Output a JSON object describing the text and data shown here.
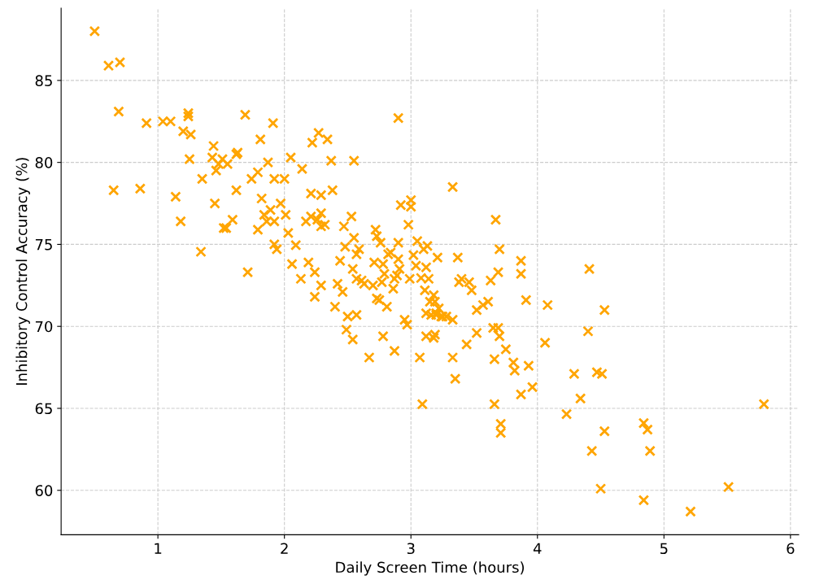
{
  "chart_data": {
    "type": "scatter",
    "xlabel": "Daily Screen Time (hours)",
    "ylabel": "Inhibitory Control Accuracy (%)",
    "xlim": [
      0.235,
      6.065
    ],
    "ylim": [
      57.29,
      89.41
    ],
    "xticks": [
      1,
      2,
      3,
      4,
      5,
      6
    ],
    "yticks": [
      60,
      65,
      70,
      75,
      80,
      85
    ],
    "grid": true,
    "marker": "cross",
    "series": [
      {
        "color": "#ffa500",
        "x": [
          0.5,
          0.61,
          0.7,
          0.69,
          0.65,
          0.86,
          0.91,
          1.04,
          1.1,
          1.2,
          1.24,
          1.24,
          1.26,
          1.25,
          1.14,
          1.18,
          1.34,
          1.35,
          1.44,
          1.43,
          1.46,
          1.48,
          1.51,
          1.55,
          1.45,
          1.52,
          1.54,
          1.59,
          1.62,
          1.63,
          1.62,
          1.69,
          1.71,
          1.74,
          1.79,
          1.81,
          1.91,
          1.79,
          1.82,
          1.84,
          1.86,
          1.87,
          1.89,
          1.92,
          1.92,
          1.92,
          1.94,
          1.97,
          2.0,
          2.01,
          2.03,
          2.05,
          2.06,
          2.09,
          2.13,
          2.14,
          2.17,
          2.19,
          2.21,
          2.21,
          2.22,
          2.24,
          2.24,
          2.26,
          2.27,
          2.29,
          2.29,
          2.29,
          2.29,
          2.32,
          2.34,
          2.37,
          2.38,
          2.4,
          2.42,
          2.44,
          2.46,
          2.47,
          2.48,
          2.49,
          2.5,
          2.54,
          2.55,
          2.53,
          2.54,
          2.55,
          2.57,
          2.57,
          2.57,
          2.59,
          2.61,
          2.63,
          2.67,
          2.7,
          2.71,
          2.72,
          2.73,
          2.73,
          2.75,
          2.76,
          2.77,
          2.78,
          2.78,
          2.79,
          2.81,
          2.82,
          2.84,
          2.86,
          2.87,
          2.87,
          2.89,
          2.9,
          2.9,
          2.9,
          2.92,
          2.91,
          2.95,
          2.97,
          2.98,
          2.99,
          3.0,
          3.0,
          3.02,
          3.05,
          3.04,
          3.07,
          3.09,
          3.08,
          3.1,
          3.11,
          3.12,
          3.12,
          3.13,
          3.14,
          3.12,
          3.15,
          3.16,
          3.18,
          3.18,
          3.19,
          3.2,
          3.21,
          3.2,
          3.19,
          3.22,
          3.24,
          3.25,
          3.28,
          3.33,
          3.33,
          3.33,
          3.35,
          3.37,
          3.38,
          3.4,
          3.44,
          3.46,
          3.48,
          3.52,
          3.52,
          3.57,
          3.61,
          3.63,
          3.65,
          3.66,
          3.66,
          3.67,
          3.7,
          3.87,
          3.69,
          3.87,
          3.91,
          4.08,
          4.53,
          4.41,
          4.4,
          4.06,
          3.69,
          3.7,
          3.75,
          3.81,
          3.82,
          3.93,
          3.96,
          3.87,
          4.29,
          4.47,
          4.51,
          4.34,
          4.23,
          5.79,
          3.71,
          3.71,
          4.53,
          4.84,
          4.87,
          4.43,
          4.89,
          4.5,
          5.51,
          4.84,
          5.21
        ],
        "values": [
          88.0,
          85.9,
          86.1,
          83.1,
          78.3,
          78.4,
          82.4,
          82.5,
          82.5,
          81.9,
          83.0,
          82.8,
          81.7,
          80.2,
          77.9,
          76.4,
          74.55,
          79.0,
          81.0,
          80.3,
          79.5,
          79.9,
          80.2,
          79.9,
          77.5,
          76.0,
          76.0,
          76.5,
          80.5,
          80.6,
          78.3,
          82.9,
          73.3,
          79.0,
          79.4,
          81.4,
          82.4,
          75.9,
          77.8,
          76.8,
          76.4,
          80.0,
          77.1,
          79.0,
          76.4,
          75.0,
          74.7,
          77.5,
          79.0,
          76.8,
          75.7,
          80.3,
          73.8,
          74.95,
          72.9,
          79.6,
          76.4,
          73.9,
          78.1,
          76.7,
          81.2,
          73.3,
          71.8,
          76.5,
          81.8,
          78.0,
          76.9,
          76.1,
          72.5,
          76.2,
          81.4,
          80.1,
          78.3,
          71.2,
          72.6,
          74.0,
          72.1,
          76.1,
          74.85,
          69.8,
          70.6,
          69.2,
          80.1,
          76.7,
          73.5,
          75.4,
          70.7,
          74.4,
          72.9,
          74.7,
          72.8,
          72.6,
          68.1,
          72.5,
          73.9,
          75.9,
          75.5,
          71.7,
          71.6,
          75.1,
          72.7,
          73.8,
          69.4,
          73.2,
          71.2,
          74.4,
          74.5,
          72.3,
          72.9,
          68.5,
          73.1,
          82.7,
          74.1,
          75.1,
          77.4,
          73.5,
          70.4,
          70.1,
          76.2,
          72.9,
          77.3,
          77.7,
          74.35,
          75.2,
          73.7,
          68.1,
          65.25,
          72.95,
          74.7,
          72.2,
          73.6,
          70.8,
          74.9,
          72.9,
          69.4,
          71.5,
          70.7,
          71.9,
          69.3,
          71.5,
          70.7,
          74.2,
          70.8,
          69.5,
          71.1,
          70.6,
          70.6,
          70.6,
          70.4,
          78.5,
          68.1,
          66.8,
          74.2,
          72.7,
          72.9,
          68.9,
          72.7,
          72.2,
          71.0,
          69.6,
          71.3,
          71.5,
          72.8,
          69.9,
          68.0,
          65.25,
          76.5,
          74.7,
          74.0,
          73.3,
          73.2,
          71.6,
          71.3,
          71.0,
          73.5,
          69.7,
          69.0,
          69.9,
          69.4,
          68.6,
          67.8,
          67.3,
          67.6,
          66.3,
          65.85,
          67.1,
          67.2,
          67.1,
          65.6,
          64.65,
          65.25,
          64.05,
          63.5,
          63.6,
          64.1,
          63.7,
          62.4,
          62.4,
          60.1,
          60.2,
          59.4,
          58.7
        ]
      }
    ]
  }
}
